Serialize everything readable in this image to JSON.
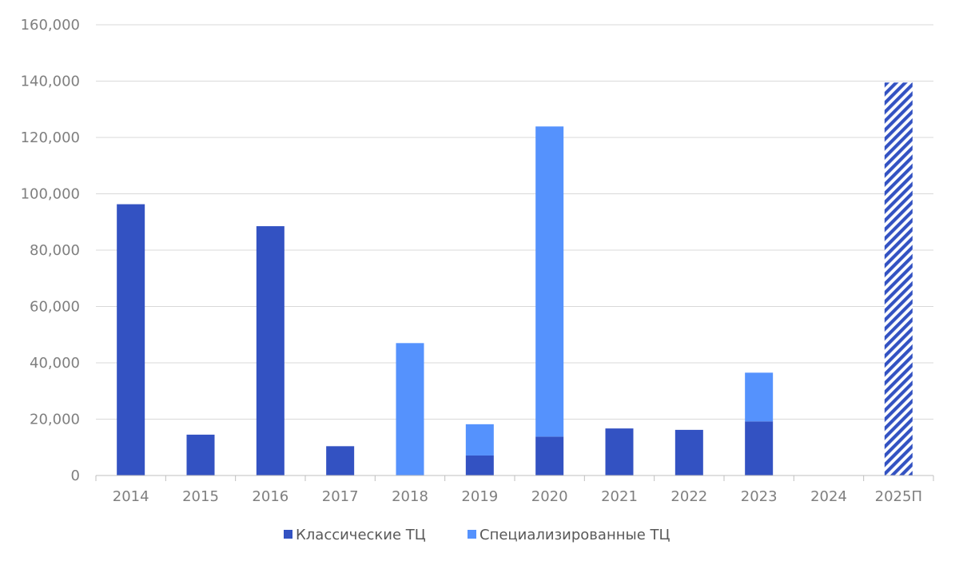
{
  "chart_data": {
    "type": "bar",
    "stacked": true,
    "categories": [
      "2014",
      "2015",
      "2016",
      "2017",
      "2018",
      "2019",
      "2020",
      "2021",
      "2022",
      "2023",
      "2024",
      "2025П"
    ],
    "series": [
      {
        "name": "Классические ТЦ",
        "color": "#3352c2",
        "values": [
          96300,
          14500,
          88500,
          10400,
          0,
          7100,
          13800,
          16700,
          16200,
          19200,
          0,
          null
        ]
      },
      {
        "name": "Специализированные ТЦ",
        "color": "#5592fd",
        "values": [
          0,
          0,
          0,
          0,
          47000,
          11100,
          110100,
          0,
          0,
          17300,
          0,
          null
        ]
      }
    ],
    "forecast": {
      "category": "2025П",
      "value": 139500,
      "pattern": "diagonal-hatch",
      "color": "#3352c2"
    },
    "yticks": [
      "0",
      "20,000",
      "40,000",
      "60,000",
      "80,000",
      "100,000",
      "120,000",
      "140,000",
      "160,000"
    ],
    "ylim": [
      0,
      160000
    ],
    "grid": true,
    "legend_position": "bottom",
    "title": "",
    "xlabel": "",
    "ylabel": ""
  }
}
